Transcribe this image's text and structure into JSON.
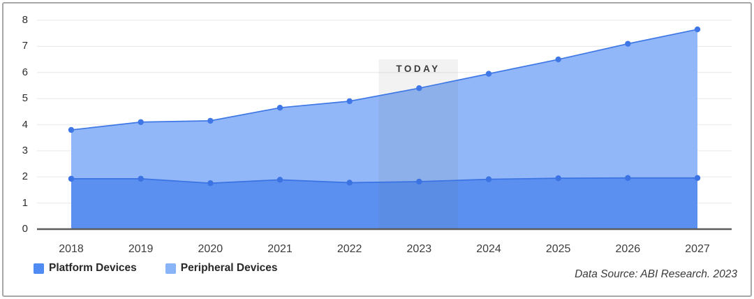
{
  "chart_data": {
    "type": "area",
    "stacked": true,
    "title": "",
    "xlabel": "",
    "ylabel": "",
    "categories": [
      "2018",
      "2019",
      "2020",
      "2021",
      "2022",
      "2023",
      "2024",
      "2025",
      "2026",
      "2027"
    ],
    "series": [
      {
        "name": "Platform Devices",
        "color": "#4f8bf2",
        "fill": "#5b90f0",
        "line": "#3b73e3",
        "values": [
          1.93,
          1.93,
          1.76,
          1.89,
          1.78,
          1.82,
          1.91,
          1.95,
          1.96,
          1.96
        ]
      },
      {
        "name": "Peripheral Devices",
        "color": "#8ab4f8",
        "fill": "#91b7f8",
        "line": "#3f78e6",
        "values": [
          1.87,
          2.17,
          2.39,
          2.76,
          3.12,
          3.58,
          4.04,
          4.55,
          5.14,
          5.69
        ]
      }
    ],
    "stacked_totals": [
      3.8,
      4.1,
      4.15,
      4.65,
      4.9,
      5.4,
      5.95,
      6.5,
      7.1,
      7.65
    ],
    "ylim": [
      0,
      8
    ],
    "yticks": [
      0,
      1,
      2,
      3,
      4,
      5,
      6,
      7,
      8
    ],
    "grid": true,
    "gridline_color": "#ececec",
    "axis_line_color": "#5c5c5c",
    "legend_position": "bottom-left",
    "today_band": {
      "label": "TODAY",
      "x_start": 2022.42,
      "x_end": 2023.56,
      "y_top": 6.5,
      "band_color": "#f1f1f1"
    }
  },
  "footer": {
    "data_source": "Data Source: ABI Research. 2023"
  }
}
